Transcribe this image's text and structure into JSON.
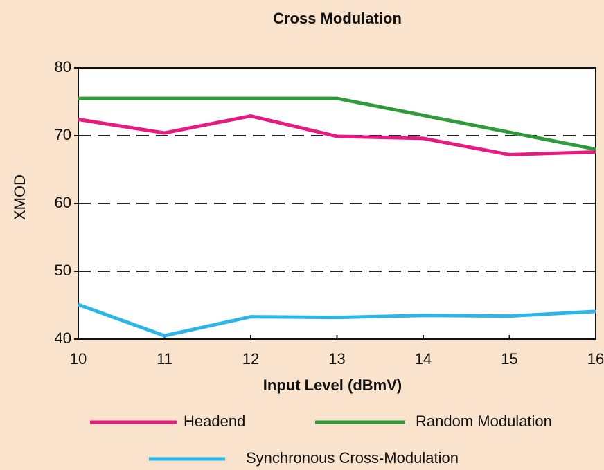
{
  "chart_data": {
    "type": "line",
    "title": "Cross Modulation",
    "x_label": "Input Level (dBmV)",
    "y_label": "XMOD",
    "x": [
      10,
      11,
      12,
      13,
      14,
      15,
      16
    ],
    "series": [
      {
        "name": "Headend",
        "color": "#e8197f",
        "values": [
          72.4,
          70.4,
          72.9,
          69.9,
          69.6,
          67.2,
          67.6
        ]
      },
      {
        "name": "Random Modulation",
        "color": "#2e9a3a",
        "values": [
          75.5,
          75.5,
          75.5,
          75.5,
          73.0,
          70.5,
          68.0
        ]
      },
      {
        "name": "Synchronous Cross-Modulation",
        "color": "#2bb5e8",
        "values": [
          45.1,
          40.5,
          43.3,
          43.2,
          43.5,
          43.4,
          44.1
        ]
      }
    ],
    "xlim": [
      10,
      16
    ],
    "xticks": [
      10,
      11,
      12,
      13,
      14,
      15,
      16
    ],
    "ylim": [
      40,
      80
    ],
    "yticks": [
      40,
      50,
      60,
      70,
      80
    ],
    "grid": true
  }
}
